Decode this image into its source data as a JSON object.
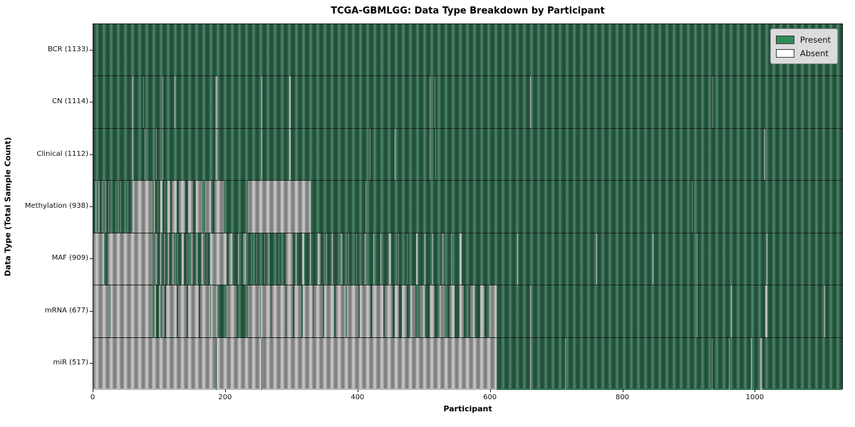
{
  "title": "TCGA-GBMLGG: Data Type Breakdown by Participant",
  "xlabel": "Participant",
  "ylabel": "Data Type (Total Sample Count)",
  "legend": {
    "present_label": "Present",
    "absent_label": "Absent"
  },
  "colors": {
    "present": "#2e8b57",
    "absent": "#ffffff",
    "present_render": "#357355",
    "absent_render": "#bdbdbd",
    "legend_bg": "#dcdcdc"
  },
  "chart_data": {
    "type": "heatmap",
    "title": "TCGA-GBMLGG: Data Type Breakdown by Participant",
    "xlabel": "Participant",
    "ylabel": "Data Type (Total Sample Count)",
    "legend_entries": [
      "Present",
      "Absent"
    ],
    "legend_position": "upper right",
    "xlim": [
      0,
      1133
    ],
    "x_ticks": [
      0,
      200,
      400,
      600,
      800,
      1000
    ],
    "n_participants": 1133,
    "rows": [
      {
        "name": "BCR",
        "label": "BCR (1133)",
        "present_count": 1133,
        "absent_ranges": []
      },
      {
        "name": "CN",
        "label": "CN (1114)",
        "present_count": 1114,
        "absent_ranges": [
          [
            59,
            59
          ],
          [
            75,
            75
          ],
          [
            104,
            104
          ],
          [
            123,
            123
          ],
          [
            184,
            186
          ],
          [
            254,
            254
          ],
          [
            296,
            297
          ],
          [
            508,
            508
          ],
          [
            515,
            515
          ],
          [
            660,
            660
          ],
          [
            935,
            935
          ]
        ]
      },
      {
        "name": "Clinical",
        "label": "Clinical (1112)",
        "present_count": 1112,
        "absent_ranges": [
          [
            59,
            59
          ],
          [
            77,
            77
          ],
          [
            95,
            95
          ],
          [
            104,
            104
          ],
          [
            184,
            186
          ],
          [
            254,
            254
          ],
          [
            296,
            297
          ],
          [
            417,
            417
          ],
          [
            455,
            455
          ],
          [
            508,
            508
          ],
          [
            516,
            516
          ],
          [
            1013,
            1013
          ]
        ]
      },
      {
        "name": "Methylation",
        "label": "Methylation (938)",
        "present_count": 938,
        "absent_ranges": [
          [
            3,
            3
          ],
          [
            8,
            8
          ],
          [
            13,
            13
          ],
          [
            18,
            18
          ],
          [
            23,
            23
          ],
          [
            33,
            33
          ],
          [
            41,
            41
          ],
          [
            52,
            52
          ],
          [
            59,
            88
          ],
          [
            91,
            92
          ],
          [
            97,
            97
          ],
          [
            101,
            103
          ],
          [
            108,
            108
          ],
          [
            112,
            115
          ],
          [
            118,
            125
          ],
          [
            129,
            138
          ],
          [
            143,
            150
          ],
          [
            155,
            164
          ],
          [
            169,
            177
          ],
          [
            183,
            196
          ],
          [
            233,
            327
          ],
          [
            411,
            411
          ],
          [
            904,
            904
          ]
        ]
      },
      {
        "name": "MAF",
        "label": "MAF (909)",
        "present_count": 909,
        "absent_ranges": [
          [
            0,
            15
          ],
          [
            22,
            88
          ],
          [
            94,
            96
          ],
          [
            101,
            101
          ],
          [
            106,
            108
          ],
          [
            113,
            113
          ],
          [
            118,
            121
          ],
          [
            127,
            127
          ],
          [
            133,
            136
          ],
          [
            141,
            141
          ],
          [
            147,
            150
          ],
          [
            156,
            156
          ],
          [
            162,
            165
          ],
          [
            171,
            171
          ],
          [
            176,
            200
          ],
          [
            204,
            209
          ],
          [
            218,
            218
          ],
          [
            226,
            229
          ],
          [
            238,
            238
          ],
          [
            246,
            246
          ],
          [
            258,
            258
          ],
          [
            265,
            265
          ],
          [
            280,
            280
          ],
          [
            290,
            300
          ],
          [
            306,
            306
          ],
          [
            315,
            318
          ],
          [
            327,
            327
          ],
          [
            339,
            342
          ],
          [
            352,
            352
          ],
          [
            360,
            360
          ],
          [
            373,
            376
          ],
          [
            385,
            385
          ],
          [
            397,
            397
          ],
          [
            409,
            411
          ],
          [
            423,
            423
          ],
          [
            434,
            434
          ],
          [
            447,
            449
          ],
          [
            460,
            460
          ],
          [
            473,
            473
          ],
          [
            487,
            489
          ],
          [
            500,
            500
          ],
          [
            512,
            512
          ],
          [
            526,
            528
          ],
          [
            540,
            540
          ],
          [
            553,
            555
          ],
          [
            640,
            640
          ],
          [
            760,
            760
          ],
          [
            845,
            845
          ],
          [
            911,
            911
          ],
          [
            1017,
            1017
          ]
        ]
      },
      {
        "name": "mRNA",
        "label": "mRNA (677)",
        "present_count": 677,
        "absent_ranges": [
          [
            0,
            24
          ],
          [
            26,
            88
          ],
          [
            92,
            94
          ],
          [
            99,
            100
          ],
          [
            104,
            107
          ],
          [
            110,
            125
          ],
          [
            128,
            140
          ],
          [
            143,
            158
          ],
          [
            161,
            175
          ],
          [
            178,
            186
          ],
          [
            201,
            215
          ],
          [
            233,
            251
          ],
          [
            253,
            267
          ],
          [
            269,
            289
          ],
          [
            292,
            300
          ],
          [
            303,
            313
          ],
          [
            316,
            330
          ],
          [
            333,
            345
          ],
          [
            349,
            363
          ],
          [
            366,
            380
          ],
          [
            383,
            399
          ],
          [
            402,
            418
          ],
          [
            421,
            437
          ],
          [
            440,
            451
          ],
          [
            455,
            461
          ],
          [
            466,
            472
          ],
          [
            479,
            485
          ],
          [
            493,
            499
          ],
          [
            508,
            514
          ],
          [
            523,
            529
          ],
          [
            538,
            544
          ],
          [
            553,
            559
          ],
          [
            569,
            575
          ],
          [
            584,
            590
          ],
          [
            598,
            608
          ],
          [
            660,
            660
          ],
          [
            911,
            911
          ],
          [
            963,
            963
          ],
          [
            1015,
            1017
          ],
          [
            1104,
            1104
          ]
        ]
      },
      {
        "name": "miR",
        "label": "miR (517)",
        "present_count": 517,
        "absent_ranges": [
          [
            0,
            184
          ],
          [
            186,
            253
          ],
          [
            255,
            608
          ],
          [
            660,
            660
          ],
          [
            712,
            712
          ],
          [
            934,
            934
          ],
          [
            960,
            960
          ],
          [
            993,
            993
          ],
          [
            1007,
            1009
          ]
        ]
      }
    ]
  }
}
